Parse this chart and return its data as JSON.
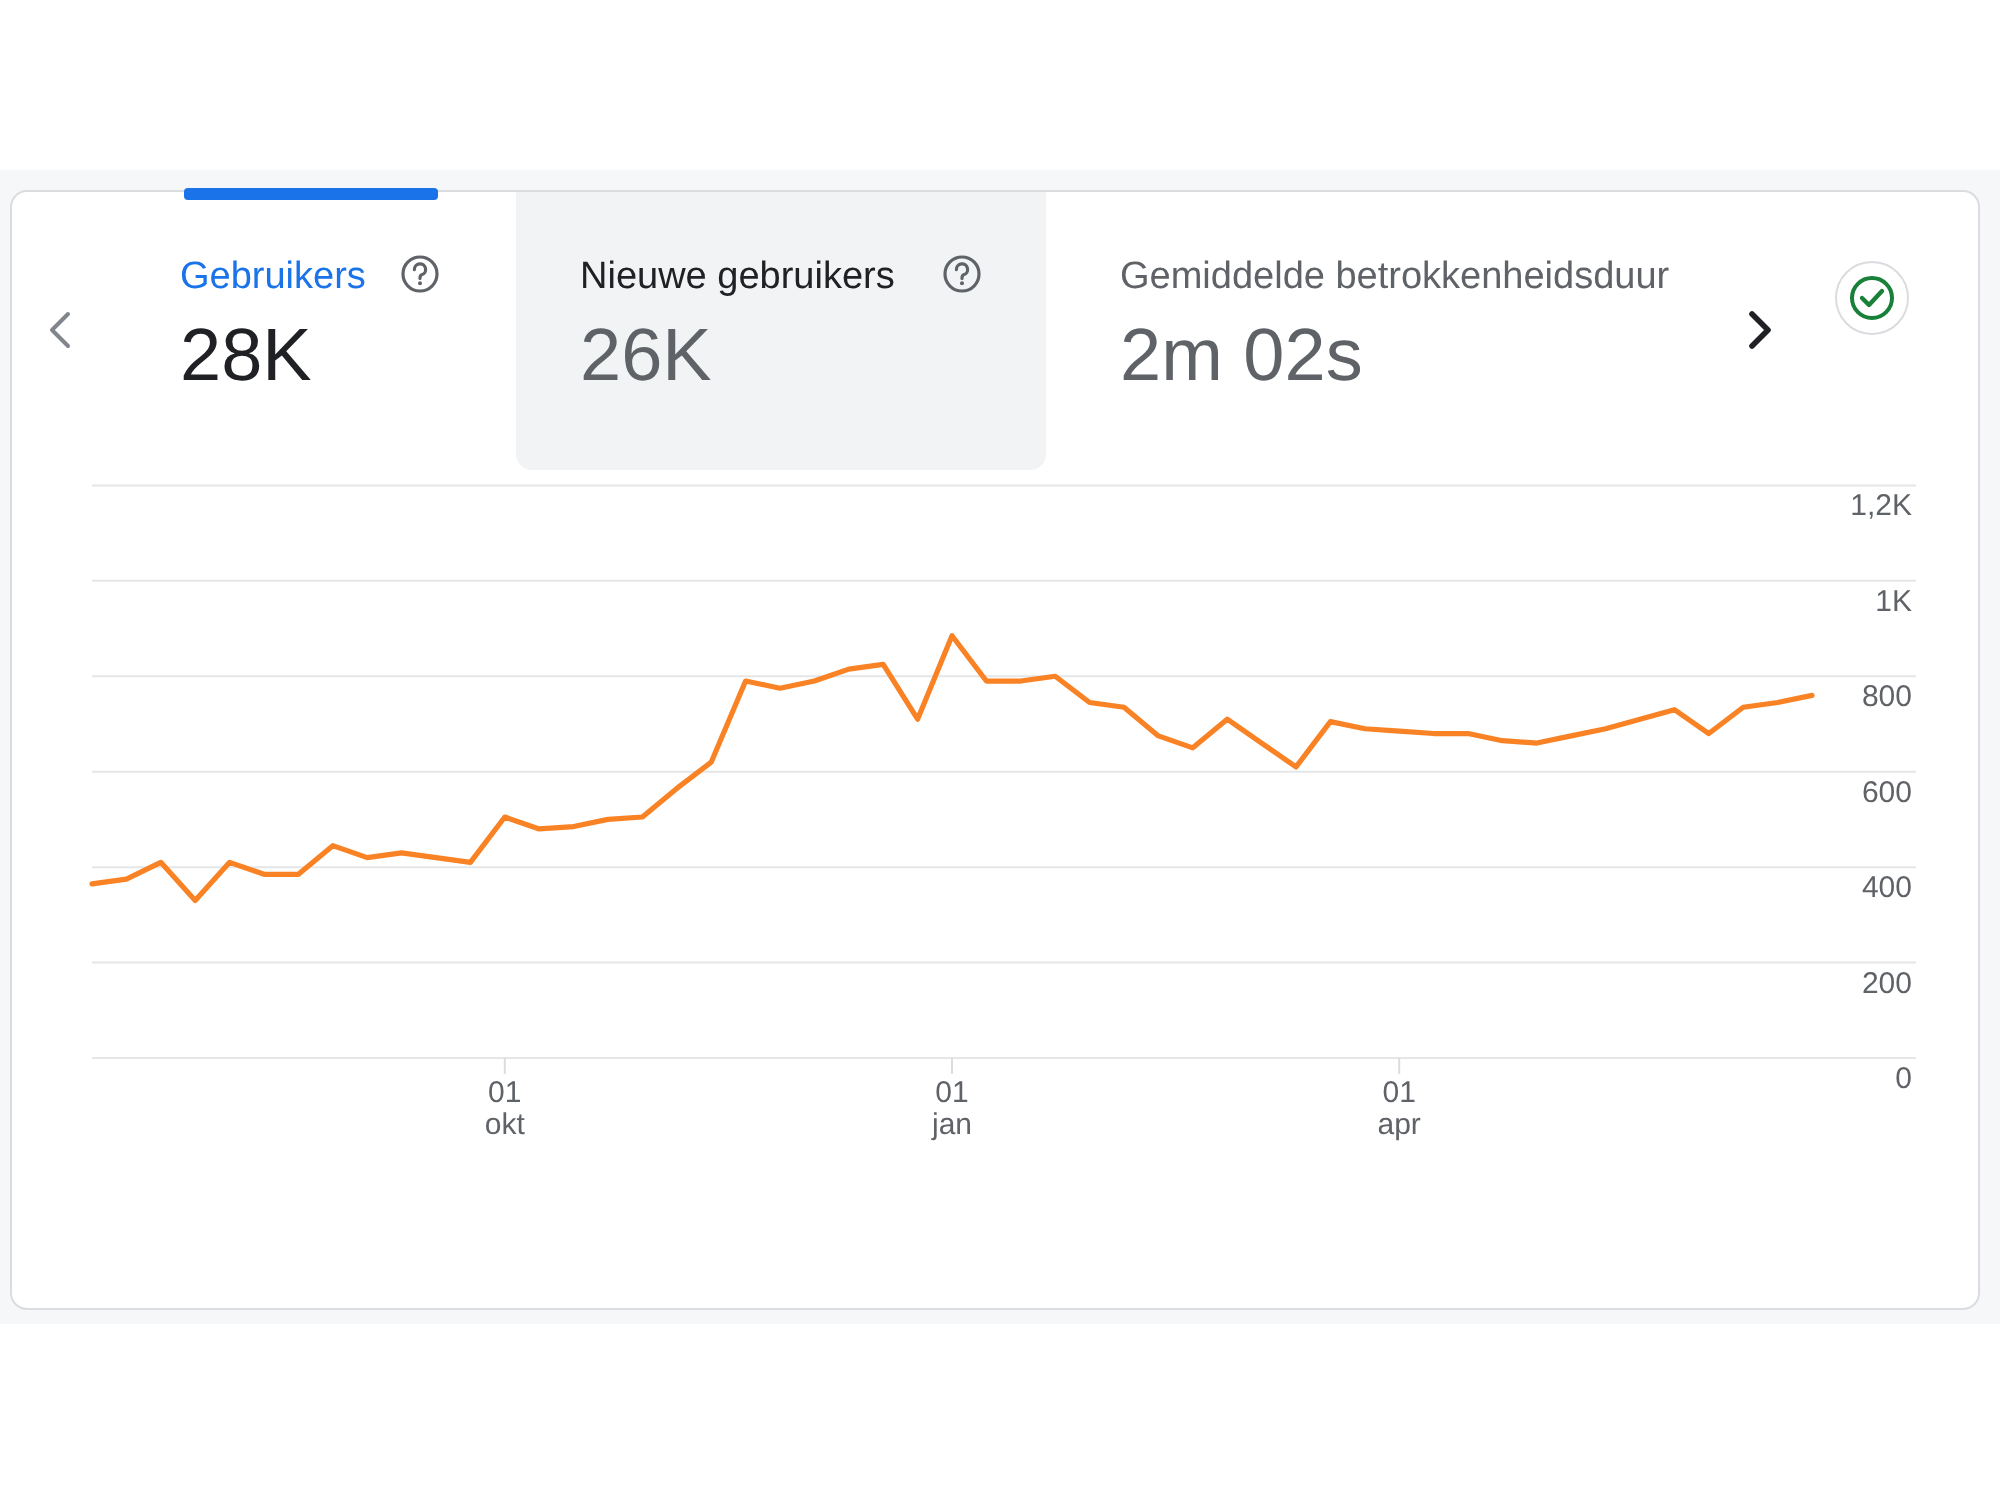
{
  "chart_data": {
    "type": "line",
    "annotations": [
      "Gebruikers",
      "28K",
      "Nieuwe gebruikers",
      "26K",
      "Gemiddelde betrokkenheidsduur",
      "2m 02s"
    ],
    "categories": [
      null,
      null,
      null,
      null,
      null,
      null,
      null,
      null,
      null,
      null,
      null,
      null,
      "01 okt",
      null,
      null,
      null,
      null,
      null,
      null,
      null,
      null,
      null,
      null,
      null,
      null,
      "01 jan",
      null,
      null,
      null,
      null,
      null,
      null,
      null,
      null,
      null,
      null,
      null,
      null,
      "01 apr",
      null,
      null,
      null,
      null,
      null,
      null,
      null,
      null,
      null,
      null,
      null,
      null
    ],
    "series": [
      {
        "color": "#f98225",
        "values": [
          365,
          375,
          410,
          330,
          410,
          385,
          385,
          445,
          420,
          430,
          420,
          410,
          505,
          480,
          485,
          500,
          505,
          565,
          620,
          790,
          775,
          790,
          815,
          825,
          710,
          885,
          790,
          790,
          800,
          745,
          735,
          675,
          650,
          710,
          660,
          610,
          705,
          690,
          685,
          680,
          680,
          665,
          660,
          675,
          690,
          710,
          730,
          680,
          735,
          745,
          760
        ]
      }
    ],
    "ylim": [
      0,
      1200
    ],
    "yticks": [
      0,
      200,
      400,
      600,
      800,
      {
        "value": 1000,
        "label": "1K"
      },
      {
        "value": 1200,
        "label": "1,2K"
      }
    ],
    "grid": "y"
  }
}
